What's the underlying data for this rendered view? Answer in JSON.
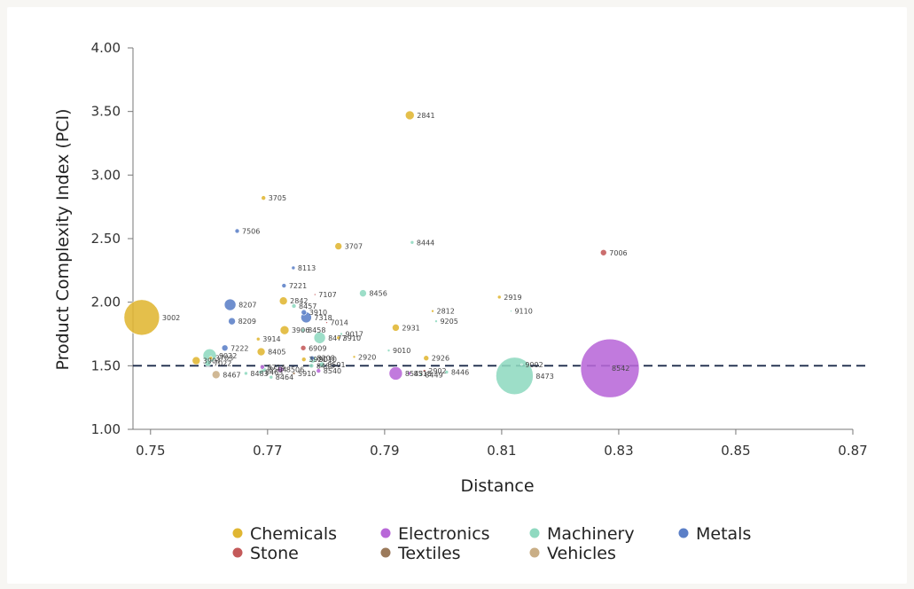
{
  "chart_data": {
    "type": "scatter",
    "title": "",
    "xlabel": "Distance",
    "ylabel": "Product Complexity Index (PCI)",
    "xlim": [
      0.747,
      0.87
    ],
    "ylim": [
      1.0,
      4.0
    ],
    "x_ticks": [
      "0.75",
      "0.77",
      "0.79",
      "0.81",
      "0.83",
      "0.85",
      "0.87"
    ],
    "y_ticks": [
      "1.00",
      "1.50",
      "2.00",
      "2.50",
      "3.00",
      "3.50",
      "4.00"
    ],
    "reference_line": {
      "y": 1.5,
      "style": "dashed"
    },
    "categories": [
      {
        "name": "Chemicals",
        "color": "#e0b632"
      },
      {
        "name": "Electronics",
        "color": "#b868d8"
      },
      {
        "name": "Machinery",
        "color": "#8fd9c0"
      },
      {
        "name": "Metals",
        "color": "#5b7fc7"
      },
      {
        "name": "Stone",
        "color": "#c45a5a"
      },
      {
        "name": "Textiles",
        "color": "#9b7a5b"
      },
      {
        "name": "Vehicles",
        "color": "#c9ae86"
      }
    ],
    "size_note": "bubble area represents relative size (unitless)",
    "points": [
      {
        "label": "3002",
        "x": 0.7485,
        "y": 1.88,
        "cat": "Chemicals",
        "size": 40
      },
      {
        "label": "8542",
        "x": 0.8285,
        "y": 1.48,
        "cat": "Electronics",
        "size": 66
      },
      {
        "label": "8473",
        "x": 0.8122,
        "y": 1.42,
        "cat": "Machinery",
        "size": 42
      },
      {
        "label": "9002",
        "x": 0.8134,
        "y": 1.51,
        "cat": "Machinery",
        "size": 2
      },
      {
        "label": "2841",
        "x": 0.7943,
        "y": 3.47,
        "cat": "Chemicals",
        "size": 10
      },
      {
        "label": "3705",
        "x": 0.7693,
        "y": 2.82,
        "cat": "Chemicals",
        "size": 5
      },
      {
        "label": "7506",
        "x": 0.7648,
        "y": 2.56,
        "cat": "Metals",
        "size": 5
      },
      {
        "label": "3707",
        "x": 0.7821,
        "y": 2.44,
        "cat": "Chemicals",
        "size": 8
      },
      {
        "label": "8444",
        "x": 0.7947,
        "y": 2.47,
        "cat": "Machinery",
        "size": 4
      },
      {
        "label": "7006",
        "x": 0.8274,
        "y": 2.39,
        "cat": "Stone",
        "size": 7
      },
      {
        "label": "8113",
        "x": 0.7744,
        "y": 2.27,
        "cat": "Metals",
        "size": 4
      },
      {
        "label": "7221",
        "x": 0.7728,
        "y": 2.13,
        "cat": "Metals",
        "size": 5
      },
      {
        "label": "7107",
        "x": 0.7781,
        "y": 2.06,
        "cat": "Stone",
        "size": 2
      },
      {
        "label": "8456",
        "x": 0.7863,
        "y": 2.07,
        "cat": "Machinery",
        "size": 8
      },
      {
        "label": "2919",
        "x": 0.8096,
        "y": 2.04,
        "cat": "Chemicals",
        "size": 4
      },
      {
        "label": "8207",
        "x": 0.7636,
        "y": 1.98,
        "cat": "Metals",
        "size": 13
      },
      {
        "label": "2812",
        "x": 0.7982,
        "y": 1.93,
        "cat": "Chemicals",
        "size": 3
      },
      {
        "label": "9110",
        "x": 0.8116,
        "y": 1.93,
        "cat": "Machinery",
        "size": 2
      },
      {
        "label": "2842",
        "x": 0.7727,
        "y": 2.01,
        "cat": "Chemicals",
        "size": 9
      },
      {
        "label": "8457",
        "x": 0.7745,
        "y": 1.97,
        "cat": "Machinery",
        "size": 5
      },
      {
        "label": "3910",
        "x": 0.7762,
        "y": 1.92,
        "cat": "Metals",
        "size": 6
      },
      {
        "label": "7318",
        "x": 0.7766,
        "y": 1.88,
        "cat": "Metals",
        "size": 12
      },
      {
        "label": "9205",
        "x": 0.7988,
        "y": 1.85,
        "cat": "Machinery",
        "size": 3
      },
      {
        "label": "8209",
        "x": 0.7639,
        "y": 1.85,
        "cat": "Metals",
        "size": 8
      },
      {
        "label": "7014",
        "x": 0.7801,
        "y": 1.84,
        "cat": "Stone",
        "size": 2
      },
      {
        "label": "3906",
        "x": 0.7729,
        "y": 1.78,
        "cat": "Chemicals",
        "size": 10
      },
      {
        "label": "8458",
        "x": 0.7761,
        "y": 1.78,
        "cat": "Machinery",
        "size": 4
      },
      {
        "label": "2931",
        "x": 0.7919,
        "y": 1.8,
        "cat": "Chemicals",
        "size": 8
      },
      {
        "label": "9017",
        "x": 0.7826,
        "y": 1.75,
        "cat": "Machinery",
        "size": 3
      },
      {
        "label": "8477",
        "x": 0.7789,
        "y": 1.72,
        "cat": "Machinery",
        "size": 13
      },
      {
        "label": "3910",
        "x": 0.7821,
        "y": 1.72,
        "cat": "Chemicals",
        "size": 4
      },
      {
        "label": "3914",
        "x": 0.7684,
        "y": 1.71,
        "cat": "Chemicals",
        "size": 4
      },
      {
        "label": "6909",
        "x": 0.7761,
        "y": 1.64,
        "cat": "Stone",
        "size": 6
      },
      {
        "label": "7222",
        "x": 0.7627,
        "y": 1.64,
        "cat": "Metals",
        "size": 7
      },
      {
        "label": "8405",
        "x": 0.7689,
        "y": 1.61,
        "cat": "Chemicals",
        "size": 9
      },
      {
        "label": "9010",
        "x": 0.7907,
        "y": 1.62,
        "cat": "Machinery",
        "size": 3
      },
      {
        "label": "3703",
        "x": 0.7603,
        "y": 1.56,
        "cat": "Chemicals",
        "size": 4
      },
      {
        "label": "8208",
        "x": 0.7776,
        "y": 1.56,
        "cat": "Metals",
        "size": 5
      },
      {
        "label": "2920",
        "x": 0.7848,
        "y": 1.57,
        "cat": "Chemicals",
        "size": 3
      },
      {
        "label": "2926",
        "x": 0.7971,
        "y": 1.56,
        "cat": "Chemicals",
        "size": 6
      },
      {
        "label": "3921",
        "x": 0.7762,
        "y": 1.55,
        "cat": "Chemicals",
        "size": 5
      },
      {
        "label": "9010",
        "x": 0.7777,
        "y": 1.55,
        "cat": "Machinery",
        "size": 8
      },
      {
        "label": "8501",
        "x": 0.7793,
        "y": 1.51,
        "cat": "Machinery",
        "size": 6
      },
      {
        "label": "3907",
        "x": 0.7578,
        "y": 1.54,
        "cat": "Chemicals",
        "size": 9
      },
      {
        "label": "7022",
        "x": 0.7598,
        "y": 1.52,
        "cat": "Machinery",
        "size": 7
      },
      {
        "label": "9022",
        "x": 0.7601,
        "y": 1.58,
        "cat": "Machinery",
        "size": 15
      },
      {
        "label": "8714",
        "x": 0.7691,
        "y": 1.49,
        "cat": "Electronics",
        "size": 5
      },
      {
        "label": "8506",
        "x": 0.7722,
        "y": 1.47,
        "cat": "Electronics",
        "size": 7
      },
      {
        "label": "8504",
        "x": 0.7693,
        "y": 1.47,
        "cat": "Machinery",
        "size": 6
      },
      {
        "label": "8540",
        "x": 0.7787,
        "y": 1.46,
        "cat": "Electronics",
        "size": 5
      },
      {
        "label": "5910",
        "x": 0.7745,
        "y": 1.44,
        "cat": "Textiles",
        "size": 3
      },
      {
        "label": "8463",
        "x": 0.7688,
        "y": 1.45,
        "cat": "Machinery",
        "size": 4
      },
      {
        "label": "8464",
        "x": 0.7706,
        "y": 1.41,
        "cat": "Machinery",
        "size": 4
      },
      {
        "label": "8467",
        "x": 0.7612,
        "y": 1.43,
        "cat": "Vehicles",
        "size": 9
      },
      {
        "label": "8483",
        "x": 0.7663,
        "y": 1.44,
        "cat": "Machinery",
        "size": 4
      },
      {
        "label": "8543",
        "x": 0.7919,
        "y": 1.44,
        "cat": "Electronics",
        "size": 15
      },
      {
        "label": "8515",
        "x": 0.7942,
        "y": 1.44,
        "cat": "Electronics",
        "size": 4
      },
      {
        "label": "2902",
        "x": 0.7968,
        "y": 1.46,
        "cat": "Stone",
        "size": 3
      },
      {
        "label": "8449",
        "x": 0.7962,
        "y": 1.43,
        "cat": "Machinery",
        "size": 3
      },
      {
        "label": "8446",
        "x": 0.8006,
        "y": 1.45,
        "cat": "Machinery",
        "size": 4
      },
      {
        "label": "8480",
        "x": 0.7775,
        "y": 1.5,
        "cat": "Machinery",
        "size": 5
      }
    ]
  }
}
